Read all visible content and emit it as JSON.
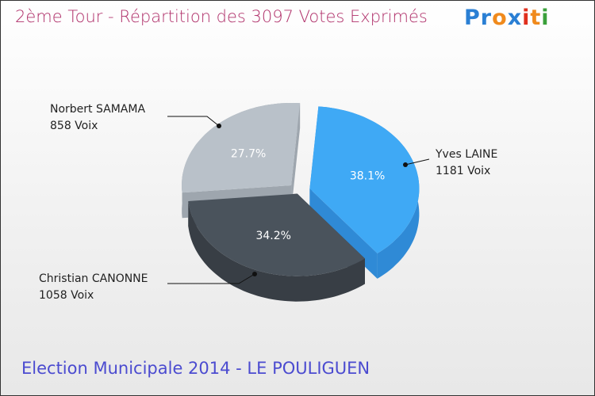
{
  "chart_data": {
    "type": "pie",
    "title": "2ème Tour - Répartition des 3097 Votes Exprimés",
    "subtitle": "Election Municipale 2014 - LE POULIGUEN",
    "slices": [
      {
        "name": "Yves LAINE",
        "votes": 1181,
        "votes_label": "1181 Voix",
        "percent": 38.1,
        "percent_label": "38.1%",
        "color": "#3fa9f5",
        "side": "#2f8ad6"
      },
      {
        "name": "Christian CANONNE",
        "votes": 1058,
        "votes_label": "1058 Voix",
        "percent": 34.2,
        "percent_label": "34.2%",
        "color": "#4a535c",
        "side": "#383e45"
      },
      {
        "name": "Norbert SAMAMA",
        "votes": 858,
        "votes_label": "858 Voix",
        "percent": 27.7,
        "percent_label": "27.7%",
        "color": "#b9c1c9",
        "side": "#9ea6ae"
      }
    ]
  },
  "logo": {
    "letters": [
      "P",
      "r",
      "o",
      "x",
      "i",
      "t",
      "i"
    ],
    "colors": [
      "#2a7fd4",
      "#2a7fd4",
      "#f08a1c",
      "#2a7fd4",
      "#e0301e",
      "#f08a1c",
      "#3aa03a"
    ]
  }
}
